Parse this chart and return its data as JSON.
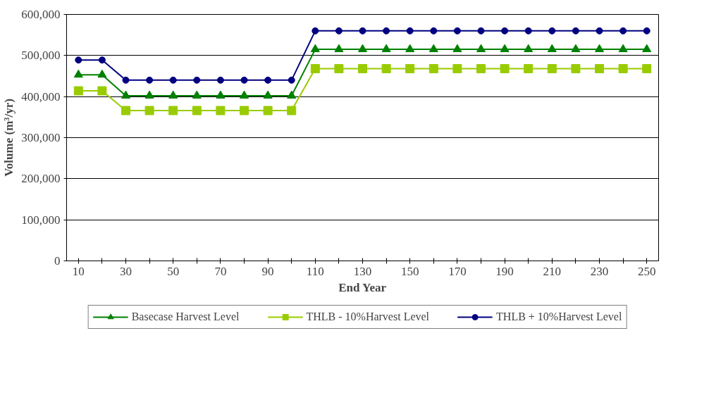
{
  "chart_data": {
    "type": "line",
    "xlabel": "End Year",
    "ylabel": "Volume (m³/yr)",
    "categories": [
      "10",
      null,
      "30",
      null,
      "50",
      null,
      "70",
      null,
      "90",
      null,
      "110",
      null,
      "130",
      null,
      "150",
      null,
      "170",
      null,
      "190",
      null,
      "210",
      null,
      "230",
      null,
      "250"
    ],
    "ylim": [
      0,
      600000
    ],
    "yticks": [
      {
        "value": 0,
        "label": "0"
      },
      {
        "value": 100000,
        "label": "100,000"
      },
      {
        "value": 200000,
        "label": "200,000"
      },
      {
        "value": 300000,
        "label": "300,000"
      },
      {
        "value": 400000,
        "label": "400,000"
      },
      {
        "value": 500000,
        "label": "500,000"
      },
      {
        "value": 600000,
        "label": "600,000"
      }
    ],
    "grid": "y",
    "legend": "bottom",
    "line_style": "solid",
    "series": [
      {
        "name": "Basecase Harvest Level",
        "color": "#008000",
        "marker": "triangle",
        "values": [
          453000,
          453000,
          402000,
          402000,
          402000,
          402000,
          402000,
          402000,
          402000,
          402000,
          515000,
          515000,
          515000,
          515000,
          515000,
          515000,
          515000,
          515000,
          515000,
          515000,
          515000,
          515000,
          515000,
          515000,
          515000
        ]
      },
      {
        "name": "THLB - 10%Harvest Level",
        "color": "#99cc00",
        "marker": "square",
        "values": [
          414000,
          414000,
          366000,
          366000,
          366000,
          366000,
          366000,
          366000,
          366000,
          366000,
          468000,
          468000,
          468000,
          468000,
          468000,
          468000,
          468000,
          468000,
          468000,
          468000,
          468000,
          468000,
          468000,
          468000,
          468000
        ]
      },
      {
        "name": "THLB + 10%Harvest Level",
        "color": "#000080",
        "marker": "circle",
        "values": [
          489000,
          489000,
          440000,
          440000,
          440000,
          440000,
          440000,
          440000,
          440000,
          440000,
          560000,
          560000,
          560000,
          560000,
          560000,
          560000,
          560000,
          560000,
          560000,
          560000,
          560000,
          560000,
          560000,
          560000,
          560000
        ]
      }
    ]
  }
}
